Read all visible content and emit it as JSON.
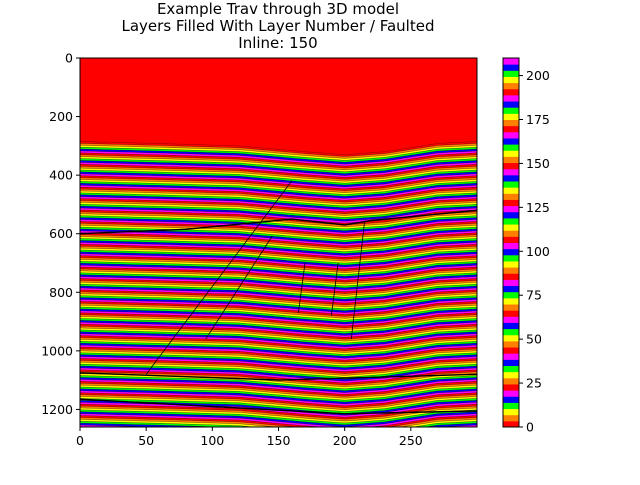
{
  "chart_data": {
    "type": "heatmap",
    "title_lines": [
      "Example Trav through 3D model",
      "Layers Filled With Layer Number / Faulted",
      "Inline: 150"
    ],
    "xlabel": "",
    "ylabel": "",
    "xlim": [
      0,
      300
    ],
    "ylim": [
      1260,
      0
    ],
    "x_ticks": [
      0,
      50,
      100,
      150,
      200,
      250
    ],
    "y_ticks": [
      0,
      200,
      400,
      600,
      800,
      1000,
      1200
    ],
    "colorbar": {
      "range": [
        0,
        210
      ],
      "ticks": [
        0,
        25,
        50,
        75,
        100,
        125,
        150,
        175,
        200
      ],
      "colormap": "prism",
      "colors": [
        "#ff0000",
        "#ff8000",
        "#ffff00",
        "#00ff00",
        "#0000ff",
        "#ff00ff"
      ]
    },
    "background_fill_color": "#ff0000",
    "layer_interval_depth": 6.5,
    "top_surface_depth": [
      [
        0,
        285
      ],
      [
        60,
        292
      ],
      [
        120,
        300
      ],
      [
        170,
        320
      ],
      [
        200,
        330
      ],
      [
        230,
        320
      ],
      [
        270,
        292
      ],
      [
        300,
        285
      ]
    ],
    "faults": [
      [
        [
          50,
          1080
        ],
        [
          160,
          420
        ]
      ],
      [
        [
          95,
          960
        ],
        [
          145,
          610
        ]
      ],
      [
        [
          165,
          870
        ],
        [
          170,
          700
        ]
      ],
      [
        [
          190,
          880
        ],
        [
          195,
          700
        ]
      ],
      [
        [
          205,
          960
        ],
        [
          215,
          560
        ]
      ]
    ],
    "horizons": [
      [
        [
          0,
          600
        ],
        [
          80,
          585
        ],
        [
          160,
          550
        ],
        [
          200,
          570
        ],
        [
          220,
          555
        ],
        [
          300,
          520
        ]
      ],
      [
        [
          0,
          1075
        ],
        [
          150,
          1100
        ],
        [
          300,
          1080
        ]
      ],
      [
        [
          0,
          1165
        ],
        [
          100,
          1190
        ],
        [
          200,
          1215
        ],
        [
          300,
          1205
        ]
      ]
    ]
  }
}
